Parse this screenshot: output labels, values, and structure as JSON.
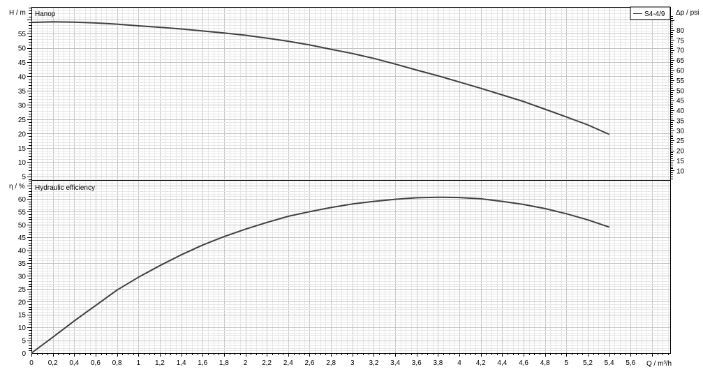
{
  "chart_data": [
    {
      "type": "line",
      "title": "Напор",
      "ylabel": "H / m",
      "ylabel_right": "Δp / psi",
      "xlim": [
        0,
        5.97
      ],
      "ylim": [
        3.7,
        64.3
      ],
      "yticks": [
        5,
        10,
        15,
        20,
        25,
        30,
        35,
        40,
        45,
        50,
        55
      ],
      "yticks_right": [
        10,
        15,
        20,
        25,
        30,
        35,
        40,
        45,
        50,
        55,
        60,
        65,
        70,
        75,
        80
      ],
      "grid": true,
      "legend": "top-right",
      "series": [
        {
          "name": "S4-4/9",
          "color": "#404040",
          "x": [
            0,
            0.2,
            0.4,
            0.6,
            0.8,
            1,
            1.2,
            1.4,
            1.6,
            1.8,
            2,
            2.2,
            2.4,
            2.6,
            2.8,
            3,
            3.2,
            3.4,
            3.6,
            3.8,
            4,
            4.2,
            4.4,
            4.6,
            4.8,
            5,
            5.2,
            5.4
          ],
          "y": [
            58.9,
            59.1,
            59,
            58.7,
            58.3,
            57.7,
            57.2,
            56.6,
            55.9,
            55.2,
            54.4,
            53.4,
            52.3,
            51,
            49.5,
            48,
            46.3,
            44.3,
            42.2,
            40.2,
            38,
            35.8,
            33.5,
            31.2,
            28.5,
            25.8,
            23,
            19.7
          ]
        }
      ]
    },
    {
      "type": "line",
      "title": "Hydraulic efficiency",
      "ylabel": "η / %",
      "xlabel": "Q / m³/h",
      "xlim": [
        0,
        5.97
      ],
      "ylim": [
        0,
        67.3
      ],
      "yticks": [
        0,
        5,
        10,
        15,
        20,
        25,
        30,
        35,
        40,
        45,
        50,
        55,
        60
      ],
      "xticks": [
        "0",
        "0,2",
        "0,4",
        "0,6",
        "0,8",
        "1",
        "1,2",
        "1,4",
        "1,6",
        "1,8",
        "2",
        "2,2",
        "2,4",
        "2,6",
        "2,8",
        "3",
        "3,2",
        "3,4",
        "3,6",
        "3,8",
        "4",
        "4,2",
        "4,4",
        "4,6",
        "4,8",
        "5",
        "5,2",
        "5,4",
        "5,6"
      ],
      "grid": true,
      "series": [
        {
          "color": "#404040",
          "x": [
            0,
            0.2,
            0.4,
            0.6,
            0.8,
            1,
            1.2,
            1.4,
            1.6,
            1.8,
            2,
            2.2,
            2.4,
            2.6,
            2.8,
            3,
            3.2,
            3.4,
            3.6,
            3.8,
            4,
            4.2,
            4.4,
            4.6,
            4.8,
            5,
            5.2,
            5.4
          ],
          "y": [
            0,
            6.2,
            12.5,
            18.5,
            24.5,
            29.5,
            34,
            38.2,
            42,
            45.3,
            48.2,
            50.8,
            53.2,
            55,
            56.6,
            58,
            59,
            59.8,
            60.4,
            60.6,
            60.5,
            60,
            59,
            57.8,
            56.2,
            54.2,
            51.8,
            49
          ]
        }
      ]
    }
  ]
}
